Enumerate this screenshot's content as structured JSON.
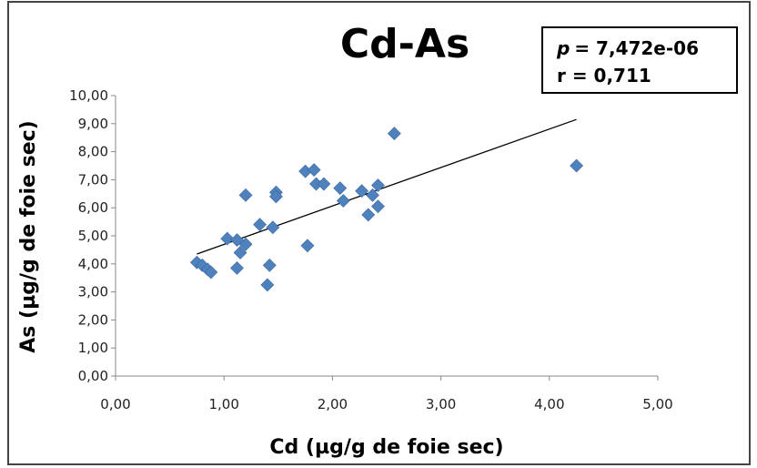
{
  "chart_data": {
    "type": "scatter",
    "title": "Cd-As",
    "xlabel": "Cd (µg/g de foie sec)",
    "ylabel": "As (µg/g de foie sec)",
    "xlim": [
      0,
      5
    ],
    "ylim": [
      0,
      10
    ],
    "x_ticks": [
      "0,00",
      "1,00",
      "2,00",
      "3,00",
      "4,00",
      "5,00"
    ],
    "y_ticks": [
      "0,00",
      "1,00",
      "2,00",
      "3,00",
      "4,00",
      "5,00",
      "6,00",
      "7,00",
      "8,00",
      "9,00",
      "10,00"
    ],
    "points": [
      {
        "x": 0.75,
        "y": 4.05
      },
      {
        "x": 0.8,
        "y": 3.95
      },
      {
        "x": 0.85,
        "y": 3.8
      },
      {
        "x": 0.88,
        "y": 3.7
      },
      {
        "x": 1.03,
        "y": 4.9
      },
      {
        "x": 1.12,
        "y": 3.85
      },
      {
        "x": 1.12,
        "y": 4.85
      },
      {
        "x": 1.15,
        "y": 4.4
      },
      {
        "x": 1.2,
        "y": 4.7
      },
      {
        "x": 1.2,
        "y": 6.45
      },
      {
        "x": 1.33,
        "y": 5.4
      },
      {
        "x": 1.4,
        "y": 3.25
      },
      {
        "x": 1.42,
        "y": 3.95
      },
      {
        "x": 1.45,
        "y": 5.3
      },
      {
        "x": 1.48,
        "y": 6.55
      },
      {
        "x": 1.48,
        "y": 6.4
      },
      {
        "x": 1.75,
        "y": 7.3
      },
      {
        "x": 1.77,
        "y": 4.65
      },
      {
        "x": 1.83,
        "y": 7.35
      },
      {
        "x": 1.85,
        "y": 6.85
      },
      {
        "x": 1.92,
        "y": 6.85
      },
      {
        "x": 2.07,
        "y": 6.7
      },
      {
        "x": 2.1,
        "y": 6.25
      },
      {
        "x": 2.27,
        "y": 6.6
      },
      {
        "x": 2.33,
        "y": 5.75
      },
      {
        "x": 2.37,
        "y": 6.45
      },
      {
        "x": 2.42,
        "y": 6.8
      },
      {
        "x": 2.42,
        "y": 6.05
      },
      {
        "x": 2.57,
        "y": 8.65
      },
      {
        "x": 4.25,
        "y": 7.5
      }
    ],
    "trendline": {
      "x": [
        0.75,
        4.25
      ],
      "y": [
        4.35,
        9.15
      ]
    },
    "marker_color": "#4F81BD",
    "line_color": "#000000",
    "grid": false,
    "legend": "none"
  },
  "stats": {
    "p_symbol": "p",
    "p_value": "= 7,472e-06",
    "r_text": "r = 0,711"
  }
}
